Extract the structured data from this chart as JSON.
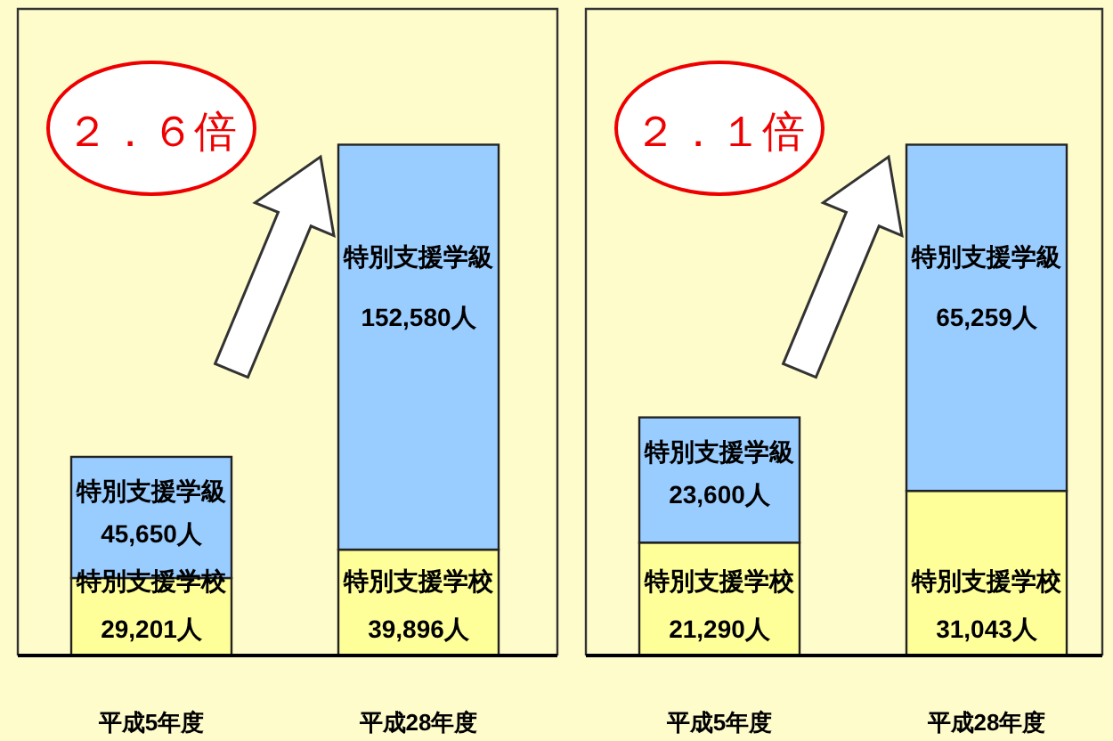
{
  "chart_data": [
    {
      "type": "bar",
      "stacked": true,
      "categories": [
        "平成5年度",
        "平成28年度"
      ],
      "series": [
        {
          "name": "特別支援学校",
          "color": "#ffff99",
          "values": [
            29201,
            39896
          ],
          "value_labels": [
            "29,201人",
            "39,896人"
          ]
        },
        {
          "name": "特別支援学級",
          "color": "#99ccff",
          "values": [
            45650,
            152580
          ],
          "value_labels": [
            "45,650人",
            "152,580人"
          ]
        }
      ],
      "annotations": [
        "２．６倍"
      ]
    },
    {
      "type": "bar",
      "stacked": true,
      "categories": [
        "平成5年度",
        "平成28年度"
      ],
      "series": [
        {
          "name": "特別支援学校",
          "color": "#ffff99",
          "values": [
            21290,
            31043
          ],
          "value_labels": [
            "21,290人",
            "31,043人"
          ]
        },
        {
          "name": "特別支援学級",
          "color": "#99ccff",
          "values": [
            23600,
            65259
          ],
          "value_labels": [
            "23,600人",
            "65,259人"
          ]
        }
      ],
      "annotations": [
        "２．１倍"
      ]
    }
  ]
}
